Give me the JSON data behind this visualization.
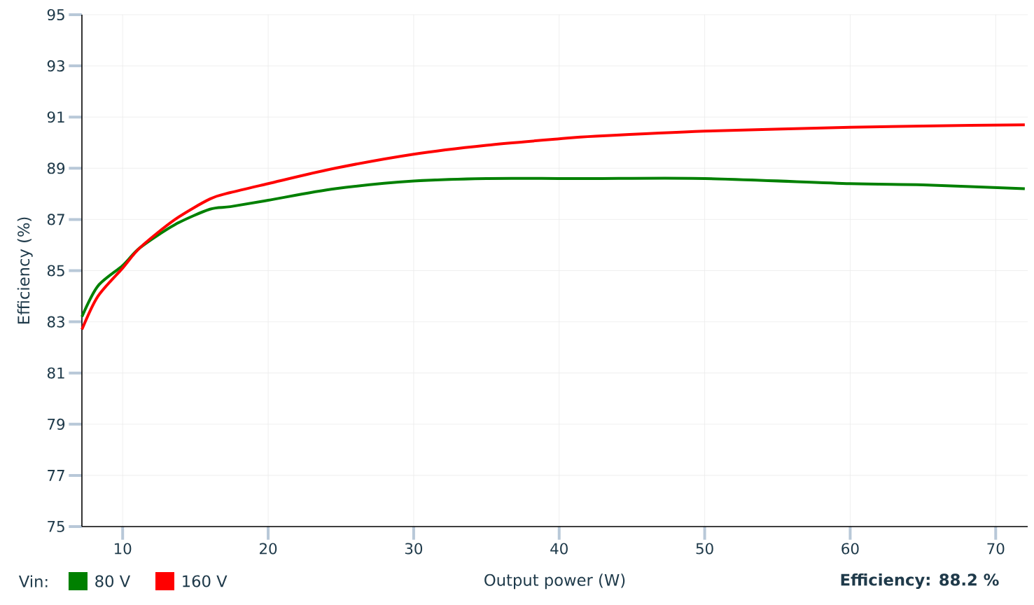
{
  "chart_data": {
    "type": "line",
    "xlabel": "Output power (W)",
    "ylabel": "Efficiency (%)",
    "legend_title": "Vin:",
    "x": [
      7.2,
      8.3,
      10,
      11.2,
      13.6,
      16,
      17.4,
      20,
      24.6,
      30,
      35,
      40,
      42.5,
      50,
      60,
      65,
      72
    ],
    "series": [
      {
        "name": "80 V",
        "color": "#008000",
        "values": [
          83.2,
          84.4,
          85.2,
          85.9,
          86.8,
          87.4,
          87.5,
          87.75,
          88.2,
          88.5,
          88.6,
          88.6,
          88.6,
          88.6,
          88.4,
          88.35,
          88.2
        ]
      },
      {
        "name": "160 V",
        "color": "#ff0000",
        "values": [
          82.7,
          84.0,
          85.1,
          85.9,
          87.0,
          87.8,
          88.05,
          88.4,
          89.0,
          89.55,
          89.9,
          90.15,
          90.25,
          90.45,
          90.6,
          90.65,
          90.7
        ]
      }
    ],
    "xlim": [
      7.2,
      72.2
    ],
    "ylim": [
      75,
      95
    ],
    "xticks": [
      10,
      20,
      30,
      40,
      50,
      60,
      70
    ],
    "yticks": [
      75,
      77,
      79,
      81,
      83,
      85,
      87,
      89,
      91,
      93,
      95
    ],
    "grid": true,
    "legend": "bottom left",
    "marker": "none",
    "line_style": "solid",
    "annotations": [
      "**Efficiency: 88.2 %**"
    ]
  }
}
